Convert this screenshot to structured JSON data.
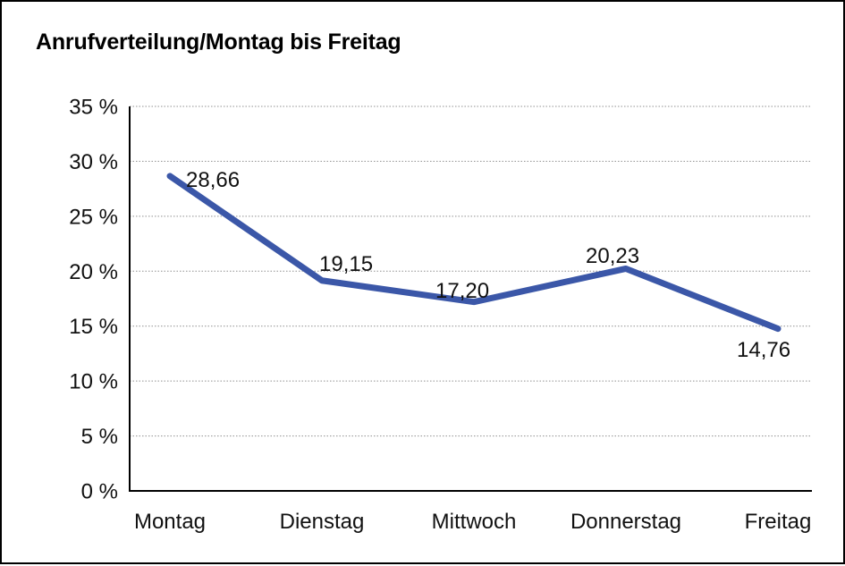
{
  "chart_data": {
    "type": "line",
    "title": "Anrufverteilung/Montag bis Freitag",
    "categories": [
      "Montag",
      "Dienstag",
      "Mittwoch",
      "Donnerstag",
      "Freitag"
    ],
    "series": [
      {
        "name": "Anrufverteilung",
        "values": [
          28.66,
          19.15,
          17.2,
          20.23,
          14.76
        ]
      }
    ],
    "value_labels": [
      "28,66",
      "19,15",
      "17,20",
      "20,23",
      "14,76"
    ],
    "xlabel": "",
    "ylabel": "",
    "ylim": [
      0,
      35
    ],
    "y_tick_step": 5,
    "y_ticks": [
      "35 %",
      "30 %",
      "25 %",
      "20 %",
      "15 %",
      "10 %",
      "5 %",
      "0 %"
    ],
    "grid": "horizontal-dotted",
    "legend": "none",
    "line_color": "#3B57A8",
    "grid_color": "#909090",
    "axis_color": "#000000",
    "text_color": "#111111"
  }
}
